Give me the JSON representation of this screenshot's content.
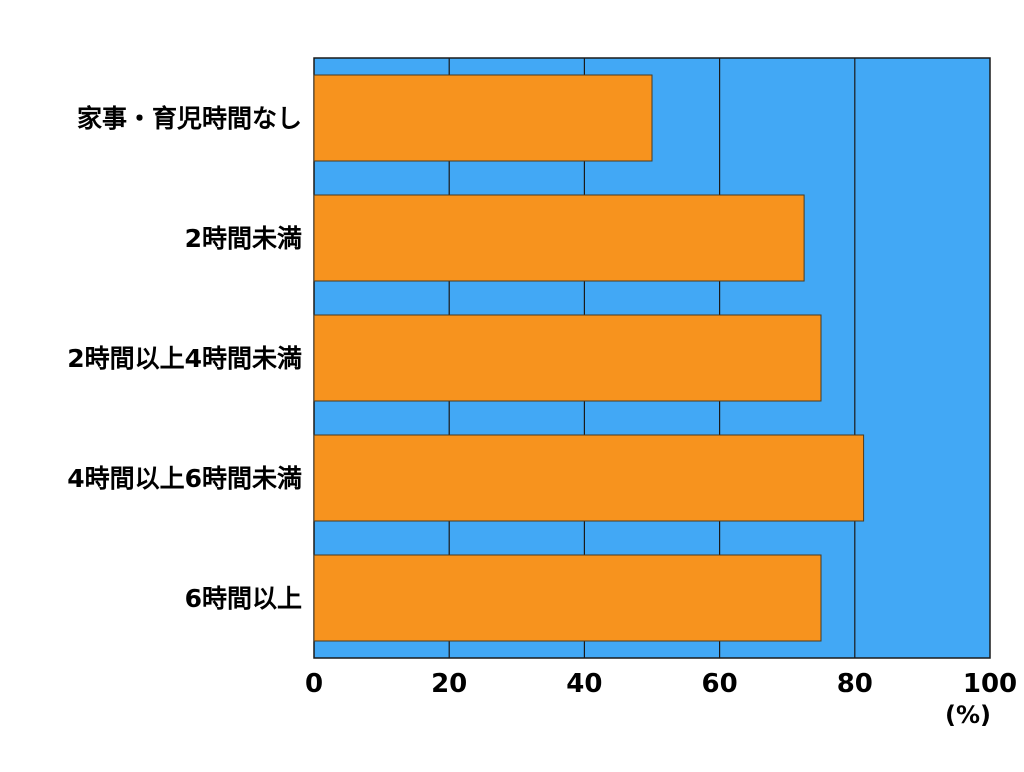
{
  "chart_data": {
    "type": "bar",
    "orientation": "horizontal",
    "categories": [
      "家事・育児時間なし",
      "2時間未満",
      "2時間以上4時間未満",
      "4時間以上6時間未満",
      "6時間以上"
    ],
    "values": [
      50.0,
      72.5,
      75.0,
      81.3,
      75.0
    ],
    "xlim": [
      0,
      100
    ],
    "xticks": [
      "0",
      "20",
      "40",
      "60",
      "80",
      "100"
    ],
    "xunit": "(%)",
    "grid": "vertical",
    "colors": {
      "plot_background": "#42a8f5",
      "bar_fill": "#f7931e",
      "grid": "#1a1a1a"
    }
  }
}
